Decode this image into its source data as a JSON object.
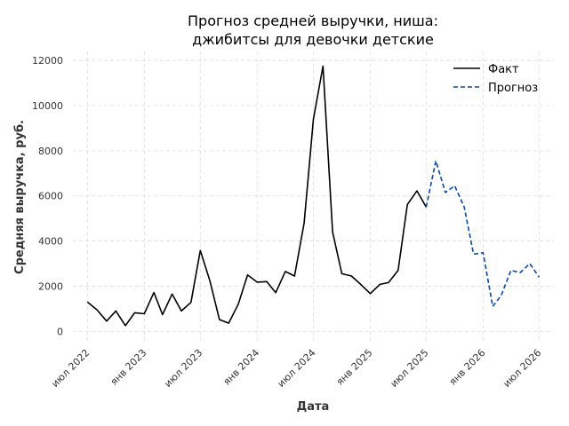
{
  "chart_data": {
    "type": "line",
    "title": [
      "Прогноз средней выручки, ниша:",
      "джибитсы для девочки детские"
    ],
    "xlabel": "Дата",
    "ylabel": "Средняя выручка, руб.",
    "x_range": [
      "2022-05-15",
      "2026-08-15"
    ],
    "ylim": [
      -500,
      12400
    ],
    "y_ticks": [
      0,
      2000,
      4000,
      6000,
      8000,
      10000,
      12000
    ],
    "x_ticks": [
      {
        "date": "2022-07-01",
        "label": "июл 2022"
      },
      {
        "date": "2023-01-01",
        "label": "янв 2023"
      },
      {
        "date": "2023-07-01",
        "label": "июл 2023"
      },
      {
        "date": "2024-01-01",
        "label": "янв 2024"
      },
      {
        "date": "2024-07-01",
        "label": "июл 2024"
      },
      {
        "date": "2025-01-01",
        "label": "янв 2025"
      },
      {
        "date": "2025-07-01",
        "label": "июл 2025"
      },
      {
        "date": "2026-01-01",
        "label": "янв 2026"
      },
      {
        "date": "2026-07-01",
        "label": "июл 2026"
      }
    ],
    "grid": true,
    "legend_position": "top-right",
    "series": [
      {
        "name": "Факт",
        "color": "#000000",
        "style": "solid",
        "points": [
          [
            "2022-07-01",
            1300
          ],
          [
            "2022-08-01",
            950
          ],
          [
            "2022-09-01",
            450
          ],
          [
            "2022-10-01",
            900
          ],
          [
            "2022-11-01",
            250
          ],
          [
            "2022-12-01",
            820
          ],
          [
            "2023-01-01",
            780
          ],
          [
            "2023-02-01",
            1720
          ],
          [
            "2023-03-01",
            740
          ],
          [
            "2023-04-01",
            1650
          ],
          [
            "2023-05-01",
            900
          ],
          [
            "2023-06-01",
            1280
          ],
          [
            "2023-07-01",
            3580
          ],
          [
            "2023-08-01",
            2250
          ],
          [
            "2023-09-01",
            520
          ],
          [
            "2023-10-01",
            360
          ],
          [
            "2023-11-01",
            1200
          ],
          [
            "2023-12-01",
            2500
          ],
          [
            "2024-01-01",
            2180
          ],
          [
            "2024-02-01",
            2200
          ],
          [
            "2024-03-01",
            1710
          ],
          [
            "2024-04-01",
            2650
          ],
          [
            "2024-05-01",
            2450
          ],
          [
            "2024-06-01",
            4800
          ],
          [
            "2024-07-01",
            9400
          ],
          [
            "2024-08-01",
            11750
          ],
          [
            "2024-09-01",
            4400
          ],
          [
            "2024-10-01",
            2550
          ],
          [
            "2024-11-01",
            2450
          ],
          [
            "2024-12-01",
            2080
          ],
          [
            "2025-01-01",
            1670
          ],
          [
            "2025-02-01",
            2080
          ],
          [
            "2025-03-01",
            2160
          ],
          [
            "2025-04-01",
            2700
          ],
          [
            "2025-05-01",
            5620
          ],
          [
            "2025-06-01",
            6220
          ],
          [
            "2025-07-01",
            5500
          ]
        ]
      },
      {
        "name": "Прогноз",
        "color": "#0044cc",
        "style": "dashed",
        "points": [
          [
            "2025-07-01",
            5500
          ],
          [
            "2025-08-01",
            7550
          ],
          [
            "2025-09-01",
            6150
          ],
          [
            "2025-10-01",
            6450
          ],
          [
            "2025-11-01",
            5500
          ],
          [
            "2025-12-01",
            3420
          ],
          [
            "2026-01-01",
            3480
          ],
          [
            "2026-02-01",
            1100
          ],
          [
            "2026-03-01",
            1600
          ],
          [
            "2026-04-01",
            2700
          ],
          [
            "2026-05-01",
            2600
          ],
          [
            "2026-06-01",
            3000
          ],
          [
            "2026-07-01",
            2400
          ]
        ]
      }
    ]
  }
}
